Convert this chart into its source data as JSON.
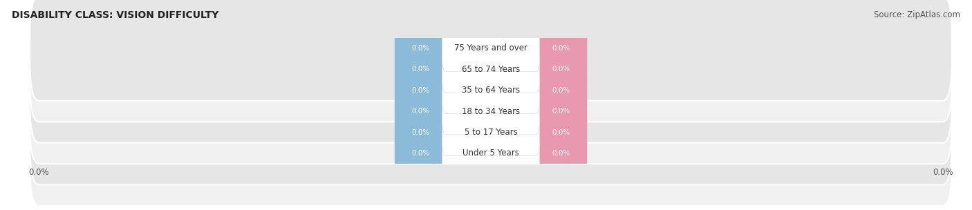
{
  "title": "DISABILITY CLASS: VISION DIFFICULTY",
  "source": "Source: ZipAtlas.com",
  "categories": [
    "Under 5 Years",
    "5 to 17 Years",
    "18 to 34 Years",
    "35 to 64 Years",
    "65 to 74 Years",
    "75 Years and over"
  ],
  "male_values": [
    0.0,
    0.0,
    0.0,
    0.0,
    0.0,
    0.0
  ],
  "female_values": [
    0.0,
    0.0,
    0.0,
    0.0,
    0.0,
    0.0
  ],
  "male_color": "#8bbbd8",
  "female_color": "#e899ae",
  "row_bg_colors": [
    "#f0f0f0",
    "#e6e6e6"
  ],
  "row_border_color": "#ffffff",
  "center_box_color": "#ffffff",
  "center_box_border": "#dddddd",
  "title_fontsize": 10,
  "source_fontsize": 8.5,
  "value_label_color": "#ffffff",
  "category_text_color": "#333333",
  "axis_label_color": "#555555",
  "legend_label_color": "#333333"
}
